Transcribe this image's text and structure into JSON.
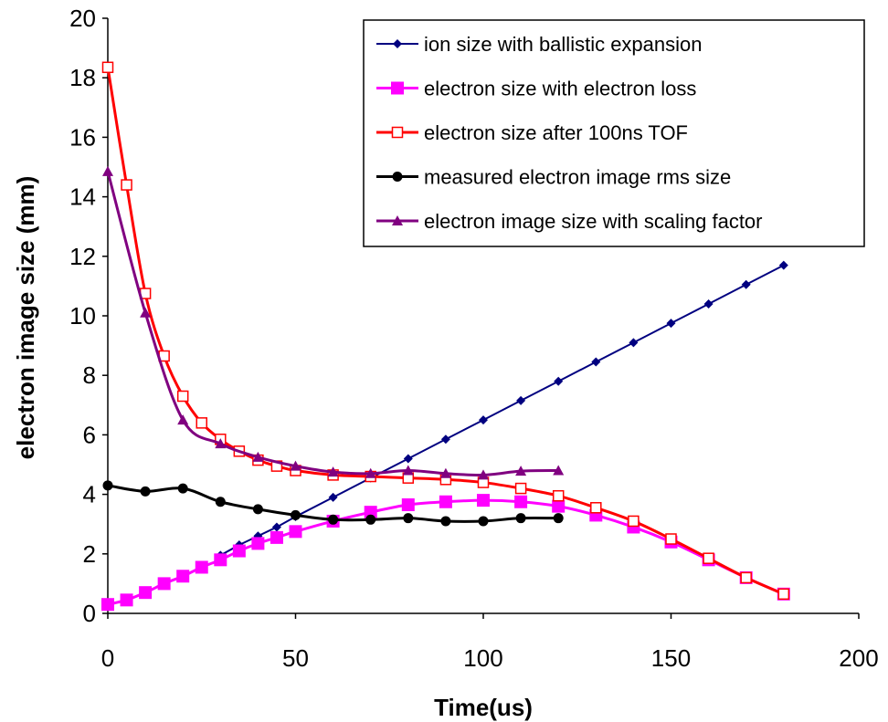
{
  "chart_data": {
    "type": "line",
    "xlabel": "Time(us)",
    "ylabel": "electron image size (mm)",
    "xlim": [
      0,
      200
    ],
    "ylim": [
      0,
      20
    ],
    "xticks": [
      0,
      50,
      100,
      150,
      200
    ],
    "yticks": [
      0,
      2,
      4,
      6,
      8,
      10,
      12,
      14,
      16,
      18,
      20
    ],
    "grid": false,
    "legend_position": "top-right",
    "series": [
      {
        "name": "ion size with ballistic expansion",
        "color": "#000080",
        "marker": "diamond",
        "smooth": false,
        "x": [
          30,
          35,
          40,
          45,
          50,
          60,
          70,
          80,
          90,
          100,
          110,
          120,
          130,
          140,
          150,
          160,
          170,
          180
        ],
        "y": [
          1.95,
          2.3,
          2.6,
          2.9,
          3.25,
          3.9,
          4.55,
          5.2,
          5.85,
          6.5,
          7.15,
          7.8,
          8.45,
          9.1,
          9.75,
          10.4,
          11.05,
          11.7
        ]
      },
      {
        "name": "electron size with electron loss",
        "color": "#FF00FF",
        "marker": "square-filled",
        "smooth": true,
        "x": [
          0,
          5,
          10,
          15,
          20,
          25,
          30,
          35,
          40,
          45,
          50,
          60,
          70,
          80,
          90,
          100,
          110,
          120,
          130,
          140,
          150,
          160,
          170,
          180
        ],
        "y": [
          0.3,
          0.45,
          0.7,
          1.0,
          1.25,
          1.55,
          1.8,
          2.1,
          2.35,
          2.55,
          2.75,
          3.1,
          3.4,
          3.65,
          3.75,
          3.8,
          3.75,
          3.6,
          3.3,
          2.9,
          2.4,
          1.8,
          1.2,
          0.65
        ]
      },
      {
        "name": "electron size after 100ns TOF",
        "color": "#FF0000",
        "marker": "square-open",
        "smooth": true,
        "x": [
          0,
          5,
          10,
          15,
          20,
          25,
          30,
          35,
          40,
          45,
          50,
          60,
          70,
          80,
          90,
          100,
          110,
          120,
          130,
          140,
          150,
          160,
          170,
          180
        ],
        "y": [
          18.35,
          14.4,
          10.75,
          8.65,
          7.3,
          6.4,
          5.85,
          5.45,
          5.15,
          4.95,
          4.8,
          4.65,
          4.6,
          4.55,
          4.5,
          4.4,
          4.2,
          3.95,
          3.55,
          3.1,
          2.5,
          1.85,
          1.2,
          0.65
        ]
      },
      {
        "name": "measured electron image rms size",
        "color": "#000000",
        "marker": "circle",
        "smooth": true,
        "x": [
          0,
          10,
          20,
          30,
          40,
          50,
          60,
          70,
          80,
          90,
          100,
          110,
          120
        ],
        "y": [
          4.3,
          4.1,
          4.2,
          3.75,
          3.5,
          3.3,
          3.15,
          3.15,
          3.2,
          3.1,
          3.1,
          3.2,
          3.2
        ]
      },
      {
        "name": "electron image size with scaling factor",
        "color": "#800080",
        "marker": "triangle",
        "smooth": true,
        "x": [
          0,
          10,
          20,
          30,
          40,
          50,
          60,
          70,
          80,
          90,
          100,
          110,
          120
        ],
        "y": [
          14.85,
          10.1,
          6.5,
          5.7,
          5.25,
          4.95,
          4.75,
          4.7,
          4.8,
          4.7,
          4.65,
          4.78,
          4.8
        ]
      }
    ]
  }
}
